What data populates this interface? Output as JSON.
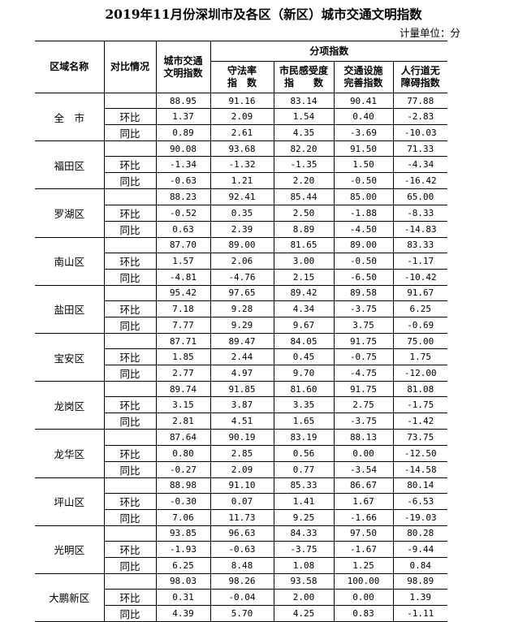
{
  "title": "2019年11月份深圳市及各区（新区）城市交通文明指数",
  "unit": "计量单位：分",
  "headers": {
    "region": "区域名称",
    "comparison": "对比情况",
    "overall": "城市交通文明指数",
    "sub_group": "分项指数",
    "sub": [
      "守法率指　数",
      "市民感受度指　　数",
      "交通设施完善指数",
      "人行道无障碍指数"
    ]
  },
  "row_labels": [
    "",
    "环比",
    "同比"
  ],
  "regions": [
    {
      "name": "全　市",
      "rows": [
        [
          "88.95",
          "91.16",
          "83.14",
          "90.41",
          "77.88"
        ],
        [
          "1.37",
          "2.09",
          "1.54",
          "0.40",
          "-2.83"
        ],
        [
          "0.89",
          "2.61",
          "4.35",
          "-3.69",
          "-10.03"
        ]
      ]
    },
    {
      "name": "福田区",
      "rows": [
        [
          "90.08",
          "93.68",
          "82.20",
          "91.50",
          "71.33"
        ],
        [
          "-1.34",
          "-1.32",
          "-1.35",
          "1.50",
          "-4.34"
        ],
        [
          "-0.63",
          "1.21",
          "2.20",
          "-0.50",
          "-16.42"
        ]
      ]
    },
    {
      "name": "罗湖区",
      "rows": [
        [
          "88.23",
          "92.41",
          "85.44",
          "85.00",
          "65.00"
        ],
        [
          "-0.52",
          "0.35",
          "2.50",
          "-1.88",
          "-8.33"
        ],
        [
          "0.63",
          "2.39",
          "8.89",
          "-4.50",
          "-14.83"
        ]
      ]
    },
    {
      "name": "南山区",
      "rows": [
        [
          "87.70",
          "89.00",
          "81.65",
          "89.00",
          "83.33"
        ],
        [
          "1.57",
          "2.06",
          "3.00",
          "-0.50",
          "-1.17"
        ],
        [
          "-4.81",
          "-4.76",
          "2.15",
          "-6.50",
          "-10.42"
        ]
      ]
    },
    {
      "name": "盐田区",
      "rows": [
        [
          "95.42",
          "97.65",
          "89.42",
          "89.58",
          "91.67"
        ],
        [
          "7.18",
          "9.28",
          "4.34",
          "-3.75",
          "6.25"
        ],
        [
          "7.77",
          "9.29",
          "9.67",
          "3.75",
          "-0.69"
        ]
      ]
    },
    {
      "name": "宝安区",
      "rows": [
        [
          "87.71",
          "89.47",
          "84.05",
          "91.75",
          "75.00"
        ],
        [
          "1.85",
          "2.44",
          "0.45",
          "-0.75",
          "1.75"
        ],
        [
          "2.77",
          "4.97",
          "9.70",
          "-4.75",
          "-12.00"
        ]
      ]
    },
    {
      "name": "龙岗区",
      "rows": [
        [
          "89.74",
          "91.85",
          "81.60",
          "91.75",
          "81.08"
        ],
        [
          "3.15",
          "3.87",
          "3.35",
          "2.75",
          "-1.75"
        ],
        [
          "2.81",
          "4.51",
          "1.65",
          "-3.75",
          "-1.42"
        ]
      ]
    },
    {
      "name": "龙华区",
      "rows": [
        [
          "87.64",
          "90.19",
          "83.19",
          "88.13",
          "73.75"
        ],
        [
          "0.80",
          "2.85",
          "0.56",
          "0.00",
          "-12.50"
        ],
        [
          "-0.27",
          "2.09",
          "0.77",
          "-3.54",
          "-14.58"
        ]
      ]
    },
    {
      "name": "坪山区",
      "rows": [
        [
          "88.98",
          "91.10",
          "85.33",
          "86.67",
          "80.14"
        ],
        [
          "-0.30",
          "0.07",
          "1.41",
          "1.67",
          "-6.53"
        ],
        [
          "7.06",
          "11.73",
          "9.25",
          "-1.66",
          "-19.03"
        ]
      ]
    },
    {
      "name": "光明区",
      "rows": [
        [
          "93.85",
          "96.63",
          "84.33",
          "97.50",
          "80.28"
        ],
        [
          "-1.93",
          "-0.63",
          "-3.75",
          "-1.67",
          "-9.44"
        ],
        [
          "6.25",
          "8.48",
          "1.08",
          "1.25",
          "0.84"
        ]
      ]
    },
    {
      "name": "大鹏新区",
      "rows": [
        [
          "98.03",
          "98.26",
          "93.58",
          "100.00",
          "98.89"
        ],
        [
          "0.31",
          "-0.04",
          "2.00",
          "0.00",
          "1.39"
        ],
        [
          "4.39",
          "5.70",
          "4.25",
          "0.83",
          "-1.11"
        ]
      ]
    }
  ]
}
